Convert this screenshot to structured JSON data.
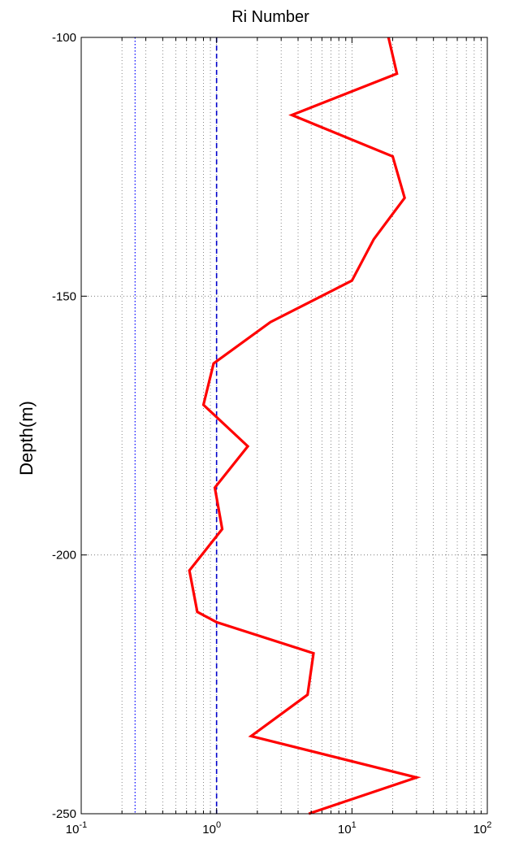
{
  "chart_data": {
    "type": "line",
    "title": "Ri Number",
    "xlabel": "",
    "ylabel": "Depth(m)",
    "xscale": "log",
    "xlim": [
      0.1,
      100
    ],
    "ylim": [
      -250,
      -100
    ],
    "x_ticks": [
      {
        "base": "10",
        "exp": "-1"
      },
      {
        "base": "10",
        "exp": "0"
      },
      {
        "base": "10",
        "exp": "1"
      },
      {
        "base": "10",
        "exp": "2"
      }
    ],
    "y_ticks": [
      "-100",
      "-150",
      "-200",
      "-250"
    ],
    "y_tick_values": [
      -100,
      -150,
      -200,
      -250
    ],
    "grid": true,
    "reference_lines": [
      {
        "x": 0.25,
        "style": "dotted",
        "color": "#0000ff"
      },
      {
        "x": 1,
        "style": "dashed",
        "color": "#0000cc"
      }
    ],
    "series": [
      {
        "color": "#ff0000",
        "points": [
          {
            "ri": 18.6,
            "depth": -100
          },
          {
            "ri": 21.5,
            "depth": -107
          },
          {
            "ri": 3.6,
            "depth": -115
          },
          {
            "ri": 20.0,
            "depth": -123
          },
          {
            "ri": 24.5,
            "depth": -131
          },
          {
            "ri": 14.5,
            "depth": -139
          },
          {
            "ri": 10.0,
            "depth": -147
          },
          {
            "ri": 2.5,
            "depth": -155
          },
          {
            "ri": 0.95,
            "depth": -163
          },
          {
            "ri": 0.8,
            "depth": -171
          },
          {
            "ri": 1.7,
            "depth": -179
          },
          {
            "ri": 0.97,
            "depth": -187
          },
          {
            "ri": 1.1,
            "depth": -195
          },
          {
            "ri": 0.63,
            "depth": -203
          },
          {
            "ri": 0.72,
            "depth": -211
          },
          {
            "ri": 1.0,
            "depth": -213
          },
          {
            "ri": 5.2,
            "depth": -219
          },
          {
            "ri": 4.7,
            "depth": -227
          },
          {
            "ri": 1.8,
            "depth": -235
          },
          {
            "ri": 30.0,
            "depth": -243
          },
          {
            "ri": 4.8,
            "depth": -250
          }
        ]
      }
    ]
  }
}
